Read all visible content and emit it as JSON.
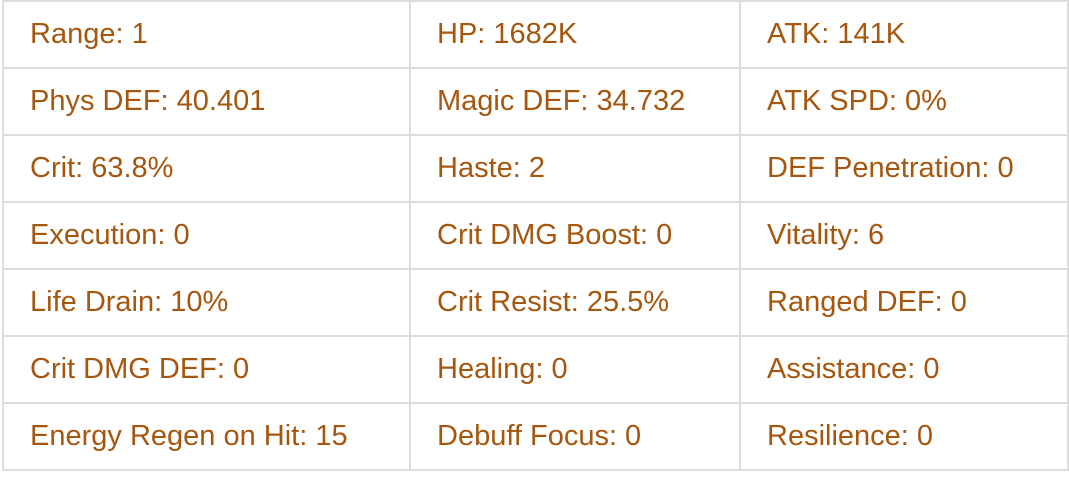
{
  "text_color": "#a5570f",
  "rows": [
    [
      "Range: 1",
      "HP: 1682K",
      "ATK: 141K"
    ],
    [
      "Phys DEF: 40.401",
      "Magic DEF: 34.732",
      "ATK SPD: 0%"
    ],
    [
      "Crit: 63.8%",
      "Haste: 2",
      "DEF Penetration: 0"
    ],
    [
      "Execution: 0",
      "Crit DMG Boost: 0",
      "Vitality: 6"
    ],
    [
      "Life Drain: 10%",
      "Crit Resist: 25.5%",
      "Ranged DEF: 0"
    ],
    [
      "Crit DMG DEF: 0",
      "Healing: 0",
      "Assistance: 0"
    ],
    [
      "Energy Regen on Hit: 15",
      "Debuff Focus: 0",
      "Resilience: 0"
    ]
  ]
}
